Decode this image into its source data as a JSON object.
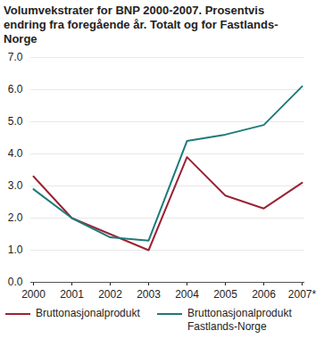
{
  "chart_data": {
    "type": "line",
    "title": "Volumvekstrater for BNP 2000-2007. Prosentvis endring fra foregående år. Totalt og for Fastlands-Norge",
    "categories": [
      "2000",
      "2001",
      "2002",
      "2003",
      "2004",
      "2005",
      "2006",
      "2007*"
    ],
    "series": [
      {
        "name": "Bruttonasjonalprodukt",
        "color": "#9b2335",
        "values": [
          3.3,
          2.0,
          1.5,
          1.0,
          3.9,
          2.7,
          2.3,
          3.1
        ]
      },
      {
        "name": "Bruttonasjonalprodukt Fastlands-Norge",
        "color": "#1f7a7a",
        "values": [
          2.9,
          2.0,
          1.4,
          1.3,
          4.4,
          4.6,
          4.9,
          6.1
        ]
      }
    ],
    "ylim": [
      0,
      7
    ],
    "yticks": [
      0,
      1,
      2,
      3,
      4,
      5,
      6,
      7
    ],
    "grid": true,
    "legend": "bottom"
  }
}
